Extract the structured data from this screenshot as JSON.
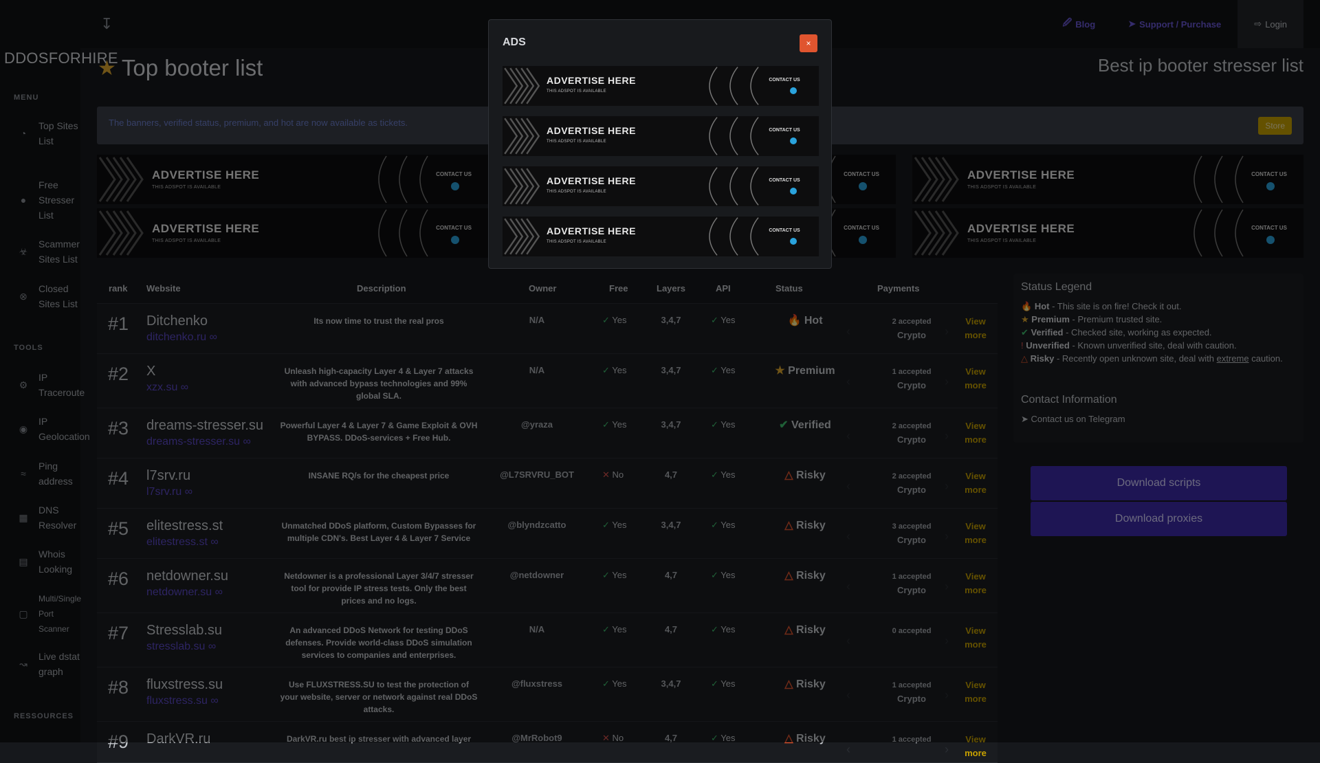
{
  "nav": {
    "blog": "Blog",
    "support": "Support / Purchase",
    "login": "Login"
  },
  "brand": "DDOSFORHIRE",
  "sidebar": {
    "menu_label": "MENU",
    "tools_label": "TOOLS",
    "resources_label": "RESSOURCES",
    "menu_items": [
      {
        "label": "Top Sites List",
        "icon": "gauge-icon"
      },
      {
        "label": "Free Stresser List",
        "icon": "lightbulb-icon"
      },
      {
        "label": "Scammer Sites List",
        "icon": "biohazard-icon"
      },
      {
        "label": "Closed Sites List",
        "icon": "x-circle-icon"
      }
    ],
    "tool_items": [
      {
        "label": "IP Traceroute",
        "icon": "globe-icon"
      },
      {
        "label": "IP Geolocation",
        "icon": "location-pin-icon"
      },
      {
        "label": "Ping address",
        "icon": "wifi-icon"
      },
      {
        "label": "DNS Resolver",
        "icon": "table-icon"
      },
      {
        "label": "Whois Looking",
        "icon": "document-search-icon"
      },
      {
        "label": "Multi/Single Port Scanner",
        "icon": "door-icon"
      },
      {
        "label": "Live dstat graph",
        "icon": "line-chart-icon"
      }
    ]
  },
  "page": {
    "title": "Top booter list",
    "subtitle": "Best ip booter stresser list",
    "notice": "The banners, verified status, premium, and hot are now available as tickets.",
    "store": "Store"
  },
  "banner": {
    "headline": "ADVERTISE HERE",
    "sub": "THIS ADSPOT IS AVAILABLE",
    "contact": "CONTACT US"
  },
  "table": {
    "headers": {
      "rank": "rank",
      "website": "Website",
      "description": "Description",
      "owner": "Owner",
      "free": "Free",
      "layers": "Layers",
      "api": "API",
      "status": "Status",
      "payments": "Payments"
    },
    "view_more": "View more",
    "rows": [
      {
        "rank": "#1",
        "name": "Ditchenko",
        "link": "ditchenko.ru",
        "desc": "Its now time to trust the real pros",
        "owner": "N/A",
        "free": "Yes",
        "free_ok": true,
        "layers": "3,4,7",
        "api": "Yes",
        "status": "Hot",
        "status_icon": "fire-icon",
        "pay_count": "2 accepted",
        "pay_type": "Crypto"
      },
      {
        "rank": "#2",
        "name": "X",
        "link": "xzx.su",
        "desc": "Unleash high-capacity Layer 4 & Layer 7 attacks with advanced bypass technologies and 99% global SLA.",
        "owner": "N/A",
        "free": "Yes",
        "free_ok": true,
        "layers": "3,4,7",
        "api": "Yes",
        "status": "Premium",
        "status_icon": "star-icon",
        "pay_count": "1 accepted",
        "pay_type": "Crypto"
      },
      {
        "rank": "#3",
        "name": "dreams-stresser.su",
        "link": "dreams-stresser.su",
        "desc": "Powerful Layer 4 & Layer 7 & Game Exploit & OVH BYPASS. DDoS-services + Free Hub.",
        "owner": "@yraza",
        "free": "Yes",
        "free_ok": true,
        "layers": "3,4,7",
        "api": "Yes",
        "status": "Verified",
        "status_icon": "check-circle-icon",
        "pay_count": "2 accepted",
        "pay_type": "Crypto"
      },
      {
        "rank": "#4",
        "name": "l7srv.ru",
        "link": "l7srv.ru",
        "desc": "INSANE RQ/s for the cheapest price",
        "owner": "@L7SRVRU_BOT",
        "free": "No",
        "free_ok": false,
        "layers": "4,7",
        "api": "Yes",
        "status": "Risky",
        "status_icon": "flame-outline-icon",
        "pay_count": "2 accepted",
        "pay_type": "Crypto"
      },
      {
        "rank": "#5",
        "name": "elitestress.st",
        "link": "elitestress.st",
        "desc": "Unmatched DDoS platform, Custom Bypasses for multiple CDN's. Best Layer 4 & Layer 7 Service",
        "owner": "@blyndzcatto",
        "free": "Yes",
        "free_ok": true,
        "layers": "3,4,7",
        "api": "Yes",
        "status": "Risky",
        "status_icon": "flame-outline-icon",
        "pay_count": "3 accepted",
        "pay_type": "Crypto"
      },
      {
        "rank": "#6",
        "name": "netdowner.su",
        "link": "netdowner.su",
        "desc": "Netdowner is a professional Layer 3/4/7 stresser tool for provide IP stress tests. Only the best prices and no logs.",
        "owner": "@netdowner",
        "free": "Yes",
        "free_ok": true,
        "layers": "4,7",
        "api": "Yes",
        "status": "Risky",
        "status_icon": "flame-outline-icon",
        "pay_count": "1 accepted",
        "pay_type": "Crypto"
      },
      {
        "rank": "#7",
        "name": "Stresslab.su",
        "link": "stresslab.su",
        "desc": "An advanced DDoS Network for testing DDoS defenses. Provide world-class DDoS simulation services to companies and enterprises.",
        "owner": "N/A",
        "free": "Yes",
        "free_ok": true,
        "layers": "4,7",
        "api": "Yes",
        "status": "Risky",
        "status_icon": "flame-outline-icon",
        "pay_count": "0 accepted",
        "pay_type": ""
      },
      {
        "rank": "#8",
        "name": "fluxstress.su",
        "link": "fluxstress.su",
        "desc": "Use FLUXSTRESS.SU to test the protection of your website, server or network against real DDoS attacks.",
        "owner": "@fluxstress",
        "free": "Yes",
        "free_ok": true,
        "layers": "3,4,7",
        "api": "Yes",
        "status": "Risky",
        "status_icon": "flame-outline-icon",
        "pay_count": "1 accepted",
        "pay_type": "Crypto"
      },
      {
        "rank": "#9",
        "name": "DarkVR.ru",
        "link": "",
        "desc": "DarkVR.ru best ip stresser with advanced layer",
        "owner": "@MrRobot9",
        "free": "No",
        "free_ok": false,
        "layers": "4,7",
        "api": "Yes",
        "status": "Risky",
        "status_icon": "flame-outline-icon",
        "pay_count": "1 accepted",
        "pay_type": ""
      }
    ]
  },
  "legend": {
    "title": "Status Legend",
    "items": [
      {
        "name": "Hot",
        "text": " - This site is on fire! Check it out."
      },
      {
        "name": "Premium",
        "text": " - Premium trusted site."
      },
      {
        "name": "Verified",
        "text": " - Checked site, working as expected."
      },
      {
        "name": "Unverified",
        "text": " - Known unverified site, deal with caution."
      },
      {
        "name": "Risky",
        "text_a": " - Recently open unknown site, deal with ",
        "text_u": "extreme",
        "text_b": " caution."
      }
    ],
    "contact_title": "Contact Information",
    "contact_link": "Contact us on Telegram"
  },
  "buttons": {
    "scripts": "Download scripts",
    "proxies": "Download proxies"
  },
  "modal": {
    "title": "ADS",
    "close": "×"
  }
}
